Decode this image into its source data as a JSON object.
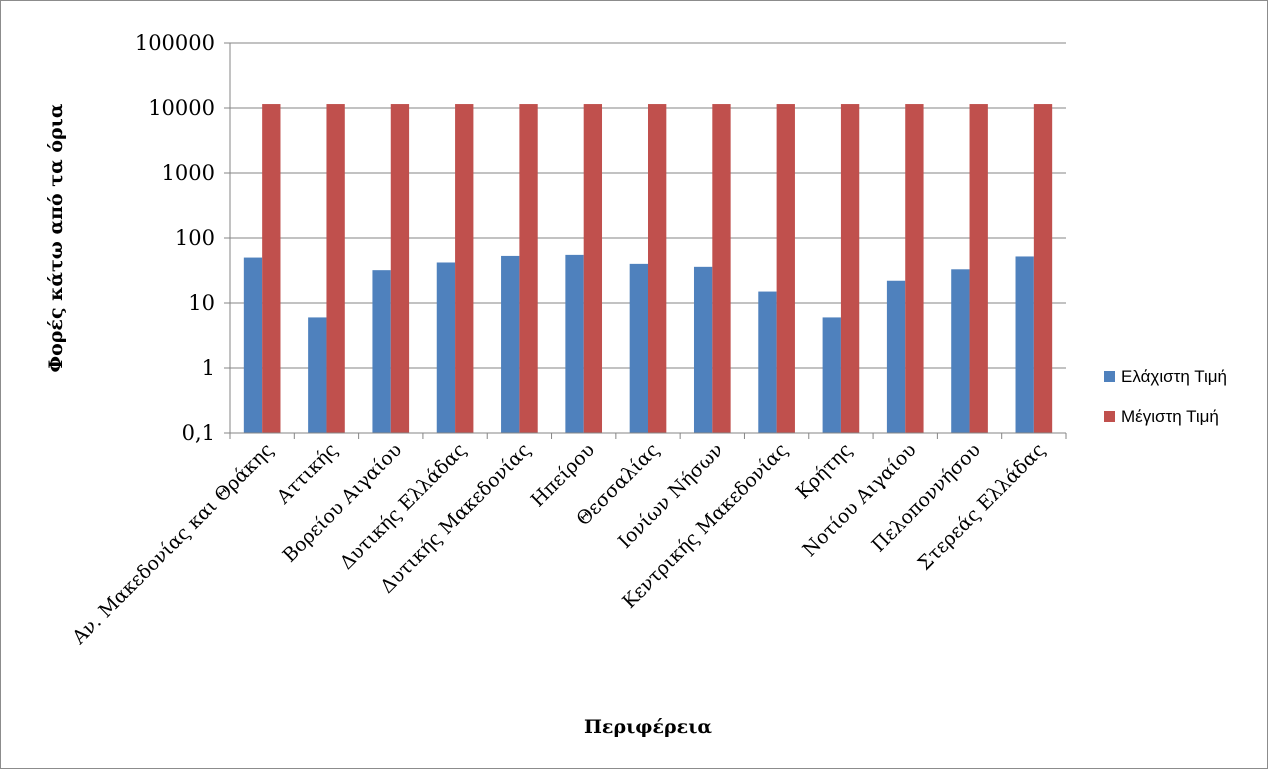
{
  "chart_data": {
    "type": "bar",
    "title": "",
    "xlabel": "Περιφέρεια",
    "ylabel": "Φορές κάτω από τα όρια",
    "yscale": "log",
    "ylim": [
      0.1,
      100000
    ],
    "yticks": [
      {
        "value": 0.1,
        "label": "0,1"
      },
      {
        "value": 1,
        "label": "1"
      },
      {
        "value": 10,
        "label": "10"
      },
      {
        "value": 100,
        "label": "100"
      },
      {
        "value": 1000,
        "label": "1000"
      },
      {
        "value": 10000,
        "label": "10000"
      },
      {
        "value": 100000,
        "label": "100000"
      }
    ],
    "grid": true,
    "legend_position": "right",
    "categories": [
      "Αν. Μακεδονίας και Θράκης",
      "Αττικής",
      "Βορείου Αιγαίου",
      "Δυτικής Ελλάδας",
      "Δυτικής Μακεδονίας",
      "Ηπείρου",
      "Θεσσαλίας",
      "Ιονίων Νήσων",
      "Κεντρικής Μακεδονίας",
      "Κρήτης",
      "Νοτίου Αιγαίου",
      "Πελοποννήσου",
      "Στερεάς Ελλάδας"
    ],
    "series": [
      {
        "name": "Ελάχιστη Τιμή",
        "color": "#4f81bd",
        "values": [
          50,
          6,
          32,
          42,
          53,
          55,
          40,
          36,
          15,
          6,
          22,
          33,
          52
        ]
      },
      {
        "name": "Μέγιστη Τιμή",
        "color": "#c0504d",
        "values": [
          11500,
          11500,
          11500,
          11500,
          11500,
          11500,
          11500,
          11500,
          11500,
          11500,
          11500,
          11500,
          11500
        ]
      }
    ]
  }
}
